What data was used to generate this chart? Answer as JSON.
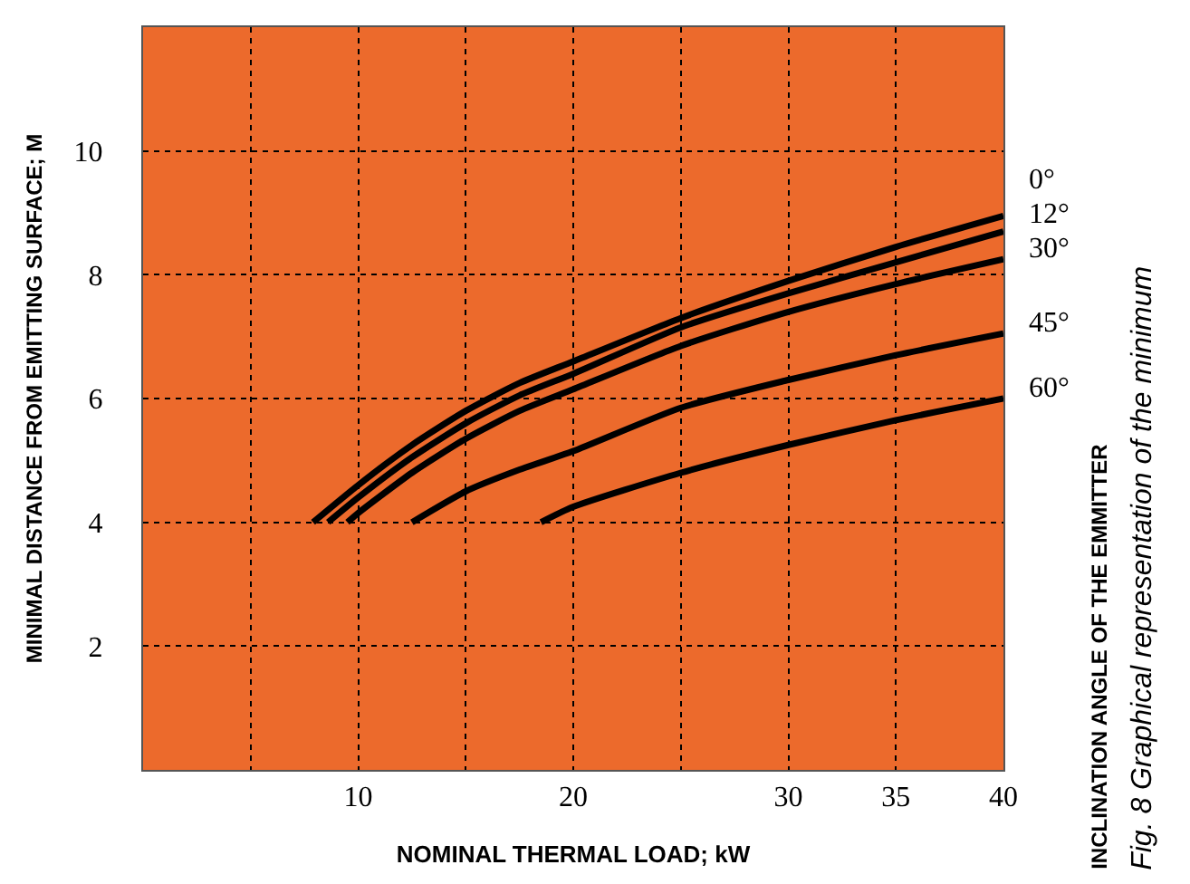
{
  "chart_data": {
    "type": "line",
    "xlabel": "NOMINAL THERMAL LOAD; kW",
    "ylabel": "MINIMAL DISTANCE FROM EMITTING SURFACE; M",
    "legend_title": "INCLINATION ANGLE OF THE EMMITTER",
    "annotations": [
      "Fig. 8 Graphical representation of the minimum"
    ],
    "xlim": [
      0,
      40
    ],
    "ylim": [
      0,
      12
    ],
    "xticks": [
      {
        "value": 5,
        "label": null
      },
      10,
      {
        "value": 15,
        "label": null
      },
      20,
      {
        "value": 25,
        "label": null
      },
      30,
      35,
      40
    ],
    "yticks": [
      2,
      4,
      6,
      8,
      10
    ],
    "grid": true,
    "legend": false,
    "marker": "none",
    "line_style": "solid",
    "series": [
      {
        "name": "0°",
        "color": "#000000",
        "x": [
          7.9,
          10,
          12.5,
          15,
          17.5,
          20,
          25,
          30,
          35,
          40
        ],
        "values": [
          4.0,
          4.6,
          5.25,
          5.8,
          6.25,
          6.6,
          7.3,
          7.9,
          8.45,
          8.95
        ]
      },
      {
        "name": "12°",
        "color": "#000000",
        "x": [
          8.6,
          10,
          12.5,
          15,
          17.5,
          20,
          25,
          30,
          35,
          40
        ],
        "values": [
          4.0,
          4.4,
          5.05,
          5.6,
          6.05,
          6.4,
          7.15,
          7.7,
          8.2,
          8.7
        ]
      },
      {
        "name": "30°",
        "color": "#000000",
        "x": [
          9.5,
          10,
          12.5,
          15,
          17.5,
          20,
          25,
          30,
          35,
          40
        ],
        "values": [
          4.0,
          4.15,
          4.8,
          5.35,
          5.8,
          6.15,
          6.85,
          7.4,
          7.85,
          8.25
        ]
      },
      {
        "name": "45°",
        "color": "#000000",
        "x": [
          12.5,
          15,
          17.5,
          20,
          25,
          30,
          35,
          40
        ],
        "values": [
          4.0,
          4.5,
          4.85,
          5.15,
          5.85,
          6.3,
          6.7,
          7.05
        ]
      },
      {
        "name": "60°",
        "color": "#000000",
        "x": [
          18.5,
          20,
          25,
          30,
          35,
          40
        ],
        "values": [
          4.0,
          4.25,
          4.8,
          5.25,
          5.65,
          6.0
        ]
      }
    ]
  }
}
